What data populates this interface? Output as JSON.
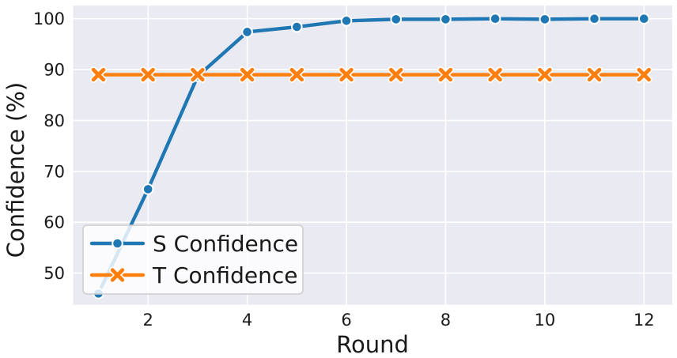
{
  "chart_data": {
    "type": "line",
    "title": "",
    "xlabel": "Round",
    "ylabel": "Confidence (%)",
    "x": [
      1,
      2,
      3,
      4,
      5,
      6,
      7,
      8,
      9,
      10,
      11,
      12
    ],
    "xticks": [
      2,
      4,
      6,
      8,
      10,
      12
    ],
    "yticks": [
      50,
      60,
      70,
      80,
      90,
      100
    ],
    "xlim": [
      0.49,
      12.57
    ],
    "ylim": [
      43.8,
      102.6
    ],
    "grid": true,
    "legend_position": "lower-left",
    "series": [
      {
        "name": "S Confidence",
        "color": "#1f77b4",
        "marker": "circle",
        "values": [
          46.0,
          66.5,
          88.7,
          97.4,
          98.4,
          99.6,
          99.9,
          99.9,
          100.0,
          99.9,
          100.0,
          100.0
        ]
      },
      {
        "name": "T Confidence",
        "color": "#ff7f0e",
        "marker": "x",
        "values": [
          89.0,
          89.0,
          89.0,
          89.0,
          89.0,
          89.0,
          89.0,
          89.0,
          89.0,
          89.0,
          89.0,
          89.0
        ]
      }
    ],
    "colors": {
      "plot_background": "#eaeaf2",
      "grid": "#ffffff",
      "text": "#1a1a1a",
      "legend_background": "#ffffff",
      "legend_border": "#cccccc"
    }
  }
}
